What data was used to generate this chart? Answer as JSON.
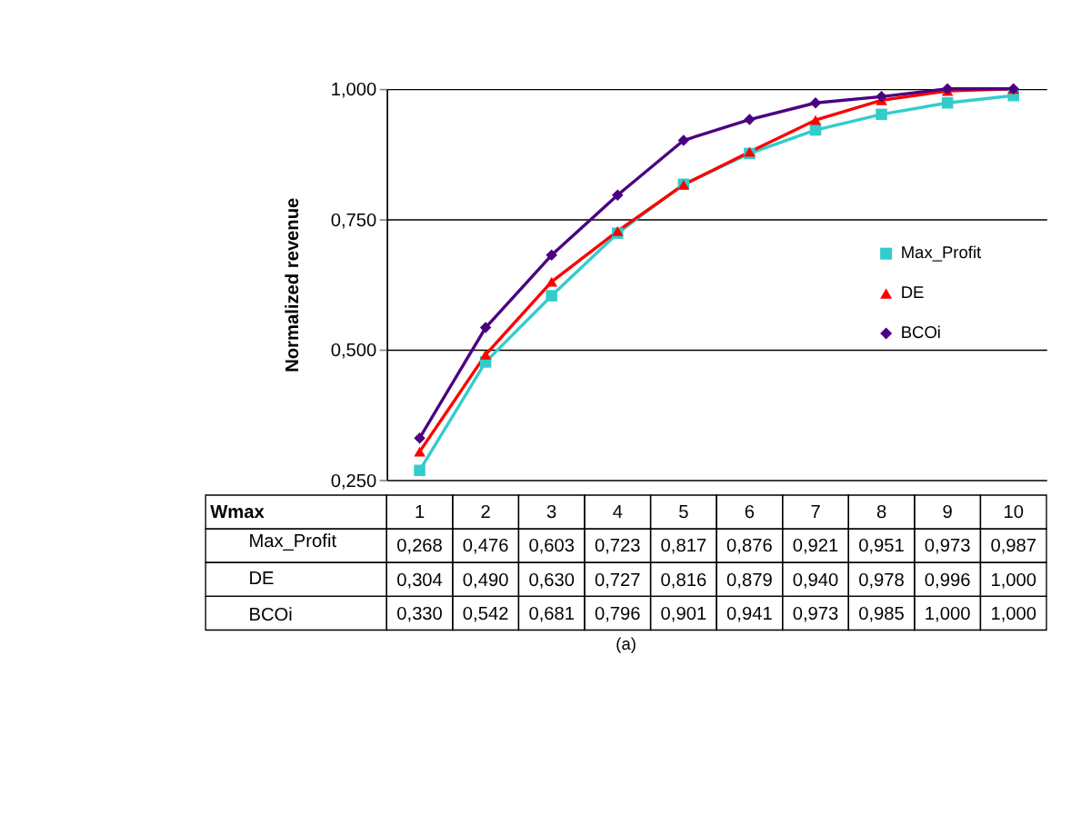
{
  "chart_data": {
    "type": "line",
    "xlabel": "Wmax",
    "ylabel": "Normalized revenue",
    "categories": [
      "1",
      "2",
      "3",
      "4",
      "5",
      "6",
      "7",
      "8",
      "9",
      "10"
    ],
    "ylim": [
      0.25,
      1.0
    ],
    "yticks": [
      {
        "value": 0.25,
        "label": "0,250"
      },
      {
        "value": 0.5,
        "label": "0,500"
      },
      {
        "value": 0.75,
        "label": "0,750"
      },
      {
        "value": 1.0,
        "label": "1,000"
      }
    ],
    "grid": "y",
    "legend": "right",
    "series": [
      {
        "name": "Max_Profit",
        "color": "#33cccc",
        "marker": "square",
        "values": [
          0.268,
          0.476,
          0.603,
          0.723,
          0.817,
          0.876,
          0.921,
          0.951,
          0.973,
          0.987
        ],
        "value_labels": [
          "0,268",
          "0,476",
          "0,603",
          "0,723",
          "0,817",
          "0,876",
          "0,921",
          "0,951",
          "0,973",
          "0,987"
        ]
      },
      {
        "name": "DE",
        "color": "#ff0000",
        "marker": "triangle",
        "values": [
          0.304,
          0.49,
          0.63,
          0.727,
          0.816,
          0.879,
          0.94,
          0.978,
          0.996,
          1.0
        ],
        "value_labels": [
          "0,304",
          "0,490",
          "0,630",
          "0,727",
          "0,816",
          "0,879",
          "0,940",
          "0,978",
          "0,996",
          "1,000"
        ]
      },
      {
        "name": "BCOi",
        "color": "#4b0082",
        "marker": "diamond",
        "values": [
          0.33,
          0.542,
          0.681,
          0.796,
          0.901,
          0.941,
          0.973,
          0.985,
          1.0,
          1.0
        ],
        "value_labels": [
          "0,330",
          "0,542",
          "0,681",
          "0,796",
          "0,901",
          "0,941",
          "0,973",
          "0,985",
          "1,000",
          "1,000"
        ]
      }
    ],
    "annotations": [
      "(a)"
    ]
  }
}
